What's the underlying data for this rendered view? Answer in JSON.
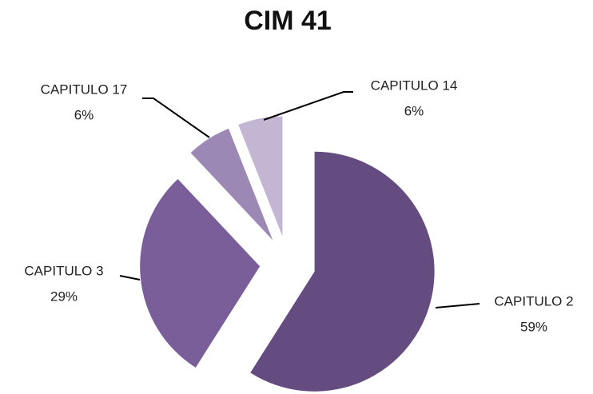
{
  "chart_data": {
    "type": "pie",
    "title": "CIM 41",
    "categories": [
      "CAPITULO 2",
      "CAPITULO 3",
      "CAPITULO 17",
      "CAPITULO 14"
    ],
    "values": [
      59,
      29,
      6,
      6
    ],
    "value_labels": [
      "59%",
      "29%",
      "6%",
      "6%"
    ],
    "colors": [
      "#644c80",
      "#7a5e99",
      "#9c88b5",
      "#c2b6d3"
    ]
  }
}
